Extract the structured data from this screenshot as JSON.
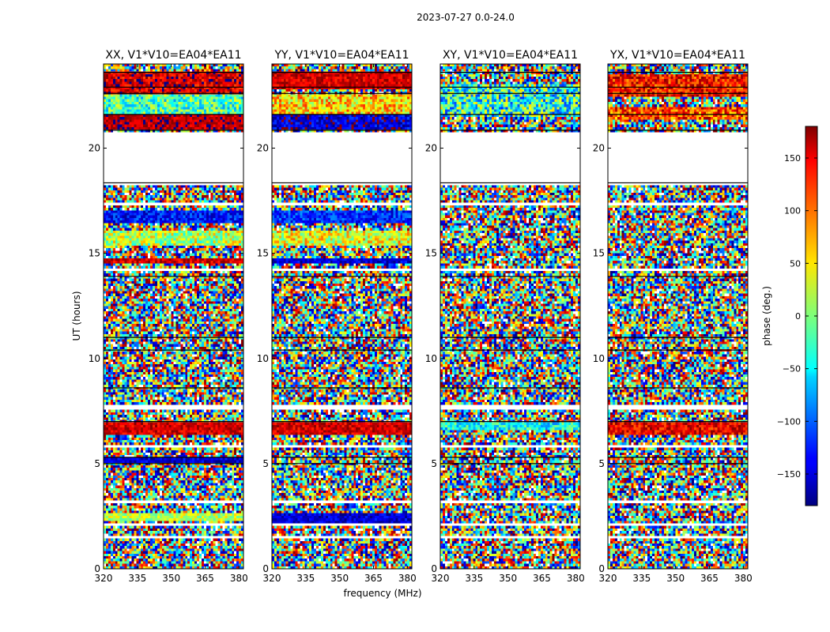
{
  "figure": {
    "title": "2023-07-27 0.0-24.0",
    "xlabel": "frequency (MHz)",
    "ylabel": "UT (hours)"
  },
  "chart_data": {
    "type": "heatmap",
    "title": "2023-07-27 0.0-24.0",
    "xlabel": "frequency (MHz)",
    "ylabel": "UT (hours)",
    "xlim": [
      320,
      382
    ],
    "ylim": [
      0,
      24
    ],
    "xticks": [
      "320",
      "335",
      "350",
      "365",
      "380"
    ],
    "xtick_values": [
      320,
      335,
      350,
      365,
      380
    ],
    "yticks": [
      "0",
      "5",
      "10",
      "15",
      "20"
    ],
    "ytick_values": [
      0,
      5,
      10,
      15,
      20
    ],
    "panels": [
      {
        "name": "XX",
        "label": "XX, V1*V10=EA04*EA11",
        "coherent_bands": [
          {
            "from": 22.6,
            "to": 23.6,
            "mean": 150,
            "spread": 40
          },
          {
            "from": 21.6,
            "to": 22.6,
            "mean": -20,
            "spread": 60
          },
          {
            "from": 20.9,
            "to": 21.6,
            "mean": 160,
            "spread": 30
          },
          {
            "from": 16.5,
            "to": 17.0,
            "mean": -130,
            "spread": 40
          },
          {
            "from": 15.4,
            "to": 16.1,
            "mean": 20,
            "spread": 60
          },
          {
            "from": 14.5,
            "to": 14.8,
            "mean": 150,
            "spread": 30
          },
          {
            "from": 6.3,
            "to": 7.0,
            "mean": 150,
            "spread": 30
          },
          {
            "from": 5.0,
            "to": 5.3,
            "mean": -150,
            "spread": 30
          },
          {
            "from": 2.3,
            "to": 2.6,
            "mean": 20,
            "spread": 40
          }
        ]
      },
      {
        "name": "YY",
        "label": "YY, V1*V10=EA04*EA11",
        "coherent_bands": [
          {
            "from": 22.8,
            "to": 23.6,
            "mean": 150,
            "spread": 30
          },
          {
            "from": 21.6,
            "to": 22.6,
            "mean": 60,
            "spread": 60
          },
          {
            "from": 20.9,
            "to": 21.6,
            "mean": -150,
            "spread": 40
          },
          {
            "from": 16.5,
            "to": 17.0,
            "mean": -120,
            "spread": 40
          },
          {
            "from": 15.4,
            "to": 16.1,
            "mean": 40,
            "spread": 60
          },
          {
            "from": 14.5,
            "to": 14.8,
            "mean": -150,
            "spread": 30
          },
          {
            "from": 6.3,
            "to": 7.0,
            "mean": 150,
            "spread": 30
          },
          {
            "from": 2.2,
            "to": 2.6,
            "mean": -150,
            "spread": 30
          }
        ]
      },
      {
        "name": "XY",
        "label": "XY, V1*V10=EA04*EA11",
        "coherent_bands": [
          {
            "from": 21.5,
            "to": 23.0,
            "mean": -30,
            "spread": 90
          },
          {
            "from": 6.6,
            "to": 6.9,
            "mean": -40,
            "spread": 50
          }
        ]
      },
      {
        "name": "YX",
        "label": "YX, V1*V10=EA04*EA11",
        "coherent_bands": [
          {
            "from": 22.5,
            "to": 23.5,
            "mean": 130,
            "spread": 50
          },
          {
            "from": 21.4,
            "to": 22.0,
            "mean": 110,
            "spread": 60
          },
          {
            "from": 6.4,
            "to": 6.9,
            "mean": 140,
            "spread": 40
          }
        ]
      }
    ],
    "blank_ut_ranges": [
      [
        18.2,
        20.0
      ],
      [
        18.5,
        18.7
      ],
      [
        20.1,
        20.8
      ],
      [
        21.0,
        21.05
      ],
      [
        17.3,
        17.35
      ],
      [
        14.2,
        14.25
      ],
      [
        12.6,
        12.65
      ],
      [
        7.6,
        7.8
      ],
      [
        5.8,
        5.85
      ],
      [
        3.1,
        3.2
      ],
      [
        2.05,
        2.2
      ],
      [
        1.4,
        1.6
      ],
      [
        0.55,
        0.6
      ]
    ],
    "flagged_ut_lines": [
      23.6,
      22.9,
      22.6,
      21.6,
      20.85,
      18.35,
      13.9,
      11.0,
      10.4,
      8.6,
      7.0,
      5.3,
      5.0
    ],
    "colorbar": {
      "label": "phase (deg.)",
      "range": [
        -180,
        180
      ],
      "ticks": [
        "150",
        "100",
        "50",
        "0",
        "−50",
        "−100",
        "−150"
      ],
      "tick_values": [
        150,
        100,
        50,
        0,
        -50,
        -100,
        -150
      ],
      "colormap": "jet"
    }
  }
}
